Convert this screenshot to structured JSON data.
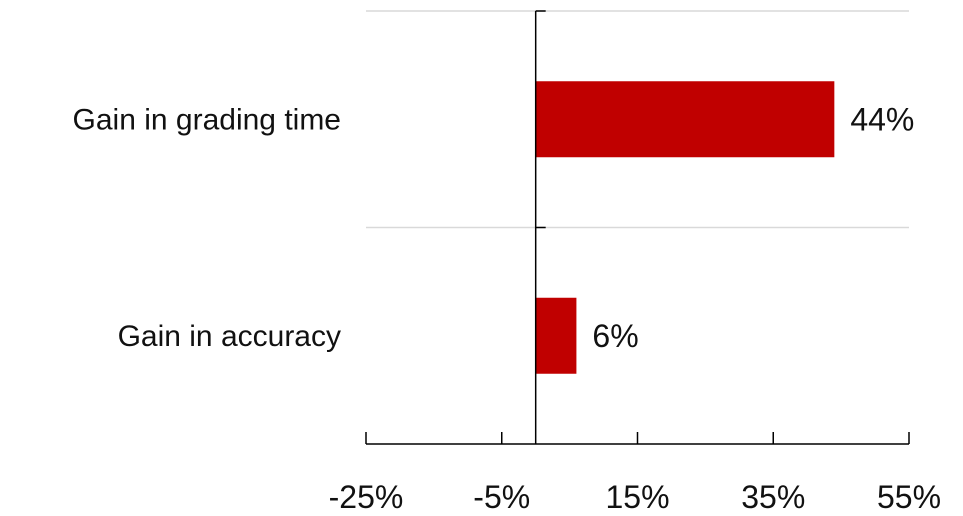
{
  "chart_data": {
    "type": "bar",
    "orientation": "horizontal",
    "categories": [
      "Gain in grading time",
      "Gain in accuracy"
    ],
    "values": [
      44,
      6
    ],
    "data_labels": [
      "44%",
      "6%"
    ],
    "title": "",
    "xlabel": "",
    "ylabel": "",
    "xlim": [
      -25,
      55
    ],
    "x_ticks": [
      -25,
      -5,
      15,
      35,
      55
    ],
    "x_tick_labels": [
      "-25%",
      "-5%",
      "15%",
      "35%",
      "55%"
    ],
    "grid": "horizontal separators",
    "legend": "none",
    "colors": {
      "bar": "#C00000",
      "axis": "#000000",
      "grid": "#D9D9D9",
      "text": "#111111"
    }
  }
}
